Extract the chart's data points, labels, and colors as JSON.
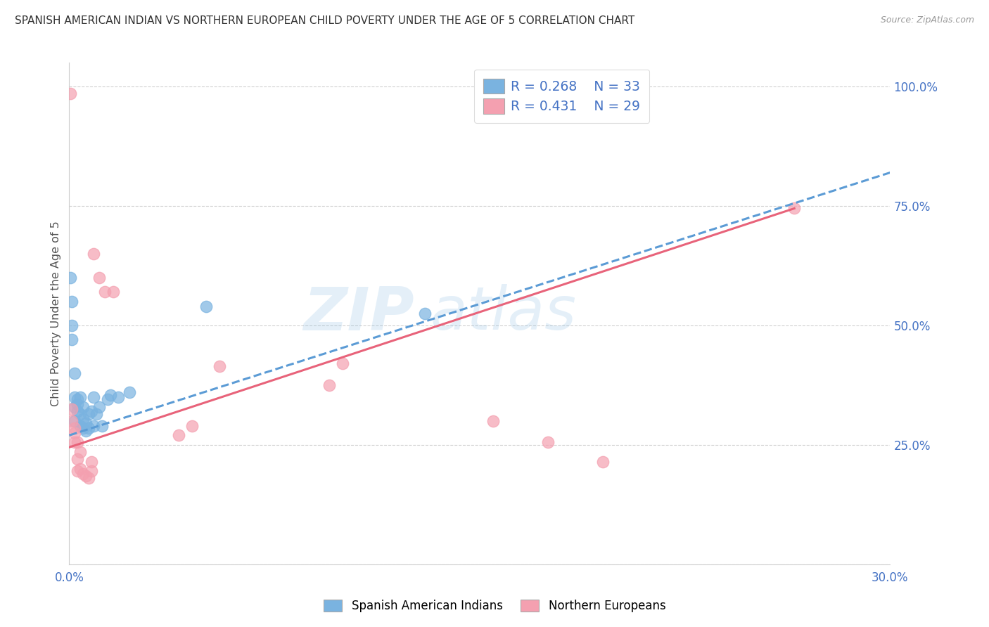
{
  "title": "SPANISH AMERICAN INDIAN VS NORTHERN EUROPEAN CHILD POVERTY UNDER THE AGE OF 5 CORRELATION CHART",
  "source": "Source: ZipAtlas.com",
  "ylabel": "Child Poverty Under the Age of 5",
  "xlim": [
    0.0,
    0.3
  ],
  "ylim": [
    0.0,
    1.05
  ],
  "ytick_values": [
    0.0,
    0.25,
    0.5,
    0.75,
    1.0
  ],
  "xtick_values": [
    0.0,
    0.05,
    0.1,
    0.15,
    0.2,
    0.25,
    0.3
  ],
  "legend_label1": "Spanish American Indians",
  "legend_label2": "Northern Europeans",
  "r1": "0.268",
  "n1": "33",
  "r2": "0.431",
  "n2": "29",
  "blue_color": "#7ab3e0",
  "pink_color": "#f4a0b0",
  "blue_line_color": "#5b9bd5",
  "pink_line_color": "#e8637a",
  "blue_text_color": "#4472C4",
  "watermark1": "ZIP",
  "watermark2": "atlas",
  "blue_scatter_x": [
    0.0005,
    0.001,
    0.001,
    0.001,
    0.002,
    0.002,
    0.002,
    0.002,
    0.003,
    0.003,
    0.003,
    0.004,
    0.004,
    0.004,
    0.005,
    0.005,
    0.005,
    0.006,
    0.006,
    0.007,
    0.007,
    0.008,
    0.009,
    0.009,
    0.01,
    0.011,
    0.012,
    0.014,
    0.015,
    0.018,
    0.022,
    0.05,
    0.13
  ],
  "blue_scatter_y": [
    0.6,
    0.47,
    0.5,
    0.55,
    0.3,
    0.33,
    0.35,
    0.4,
    0.32,
    0.335,
    0.345,
    0.315,
    0.29,
    0.35,
    0.305,
    0.285,
    0.33,
    0.28,
    0.295,
    0.285,
    0.315,
    0.32,
    0.35,
    0.29,
    0.315,
    0.33,
    0.29,
    0.345,
    0.355,
    0.35,
    0.36,
    0.54,
    0.525
  ],
  "pink_scatter_x": [
    0.0005,
    0.001,
    0.001,
    0.002,
    0.002,
    0.002,
    0.003,
    0.003,
    0.003,
    0.004,
    0.004,
    0.005,
    0.006,
    0.007,
    0.008,
    0.008,
    0.009,
    0.011,
    0.013,
    0.016,
    0.04,
    0.045,
    0.055,
    0.095,
    0.1,
    0.155,
    0.175,
    0.195,
    0.265
  ],
  "pink_scatter_y": [
    0.985,
    0.325,
    0.3,
    0.285,
    0.255,
    0.275,
    0.255,
    0.22,
    0.195,
    0.2,
    0.235,
    0.19,
    0.185,
    0.18,
    0.195,
    0.215,
    0.65,
    0.6,
    0.57,
    0.57,
    0.27,
    0.29,
    0.415,
    0.375,
    0.42,
    0.3,
    0.255,
    0.215,
    0.745
  ],
  "blue_trend_x": [
    0.0,
    0.3
  ],
  "blue_trend_y": [
    0.27,
    0.82
  ],
  "pink_trend_x": [
    0.0,
    0.265
  ],
  "pink_trend_y": [
    0.245,
    0.745
  ]
}
